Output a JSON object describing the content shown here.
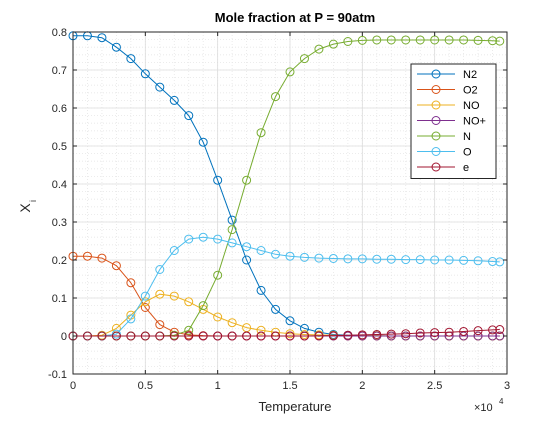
{
  "chart_data": {
    "type": "line",
    "title": "Mole fraction at P = 90atm",
    "xlabel": "Temperature",
    "ylabel_main": "X",
    "ylabel_sub": "i",
    "x_exponent_base": "×10",
    "x_exponent_power": "4",
    "xlim": [
      0,
      3
    ],
    "ylim": [
      -0.1,
      0.8
    ],
    "xticks": [
      "0",
      "0.5",
      "1",
      "1.5",
      "2",
      "2.5",
      "3"
    ],
    "yticks": [
      "-0.1",
      "0",
      "0.1",
      "0.2",
      "0.3",
      "0.4",
      "0.5",
      "0.6",
      "0.7",
      "0.8"
    ],
    "grid": "on",
    "minor_grid": "on",
    "legend_position": "top-right",
    "x": [
      0,
      0.1,
      0.2,
      0.3,
      0.4,
      0.5,
      0.6,
      0.7,
      0.8,
      0.9,
      1.0,
      1.1,
      1.2,
      1.3,
      1.4,
      1.5,
      1.6,
      1.7,
      1.8,
      1.9,
      2.0,
      2.1,
      2.2,
      2.3,
      2.4,
      2.5,
      2.6,
      2.7,
      2.8,
      2.9,
      2.95
    ],
    "series": [
      {
        "name": "N2",
        "color": "#0072BD",
        "values": [
          0.79,
          0.79,
          0.785,
          0.76,
          0.73,
          0.69,
          0.655,
          0.62,
          0.58,
          0.51,
          0.41,
          0.305,
          0.2,
          0.12,
          0.07,
          0.04,
          0.02,
          0.01,
          0.004,
          0.002,
          0.001,
          0.0005,
          0,
          0,
          0,
          0,
          0,
          0,
          0,
          0,
          0
        ]
      },
      {
        "name": "O2",
        "color": "#D95319",
        "values": [
          0.21,
          0.21,
          0.205,
          0.185,
          0.14,
          0.075,
          0.03,
          0.01,
          0.003,
          0.001,
          0,
          0,
          0,
          0,
          0,
          0,
          0,
          0,
          0,
          0,
          0,
          0,
          0,
          0,
          0,
          0,
          0,
          0,
          0,
          0,
          0
        ]
      },
      {
        "name": "NO",
        "color": "#EDB120",
        "values": [
          0,
          0,
          0.002,
          0.02,
          0.055,
          0.09,
          0.11,
          0.105,
          0.09,
          0.07,
          0.05,
          0.035,
          0.022,
          0.015,
          0.01,
          0.006,
          0.004,
          0.003,
          0.002,
          0.001,
          0.001,
          0.001,
          0,
          0,
          0,
          0,
          0,
          0,
          0,
          0,
          0
        ]
      },
      {
        "name": "NO+",
        "color": "#7E2F8E",
        "values": [
          0,
          0,
          0,
          0,
          0,
          0,
          0,
          0,
          0,
          0,
          0,
          0,
          0,
          0,
          0,
          0,
          0,
          0,
          0,
          0,
          0,
          0,
          0,
          0,
          0,
          0,
          0,
          0,
          0,
          0,
          0
        ]
      },
      {
        "name": "N",
        "color": "#77AC30",
        "values": [
          0,
          0,
          0,
          0,
          0,
          0,
          0,
          0.002,
          0.015,
          0.08,
          0.16,
          0.28,
          0.41,
          0.535,
          0.63,
          0.695,
          0.73,
          0.755,
          0.768,
          0.775,
          0.778,
          0.779,
          0.779,
          0.779,
          0.779,
          0.779,
          0.779,
          0.779,
          0.778,
          0.777,
          0.776
        ]
      },
      {
        "name": "O",
        "color": "#4DBEEE",
        "values": [
          0,
          0,
          0,
          0.005,
          0.045,
          0.105,
          0.175,
          0.225,
          0.255,
          0.26,
          0.255,
          0.245,
          0.235,
          0.225,
          0.215,
          0.21,
          0.207,
          0.205,
          0.204,
          0.203,
          0.203,
          0.202,
          0.202,
          0.201,
          0.201,
          0.2,
          0.2,
          0.199,
          0.198,
          0.196,
          0.195
        ]
      },
      {
        "name": "e",
        "color": "#A2142F",
        "values": [
          0,
          0,
          0,
          0,
          0,
          0,
          0,
          0,
          0,
          0,
          0,
          0,
          0,
          0,
          0,
          0,
          0,
          0.0005,
          0.001,
          0.002,
          0.003,
          0.004,
          0.005,
          0.006,
          0.008,
          0.009,
          0.01,
          0.012,
          0.014,
          0.016,
          0.017
        ]
      }
    ]
  }
}
